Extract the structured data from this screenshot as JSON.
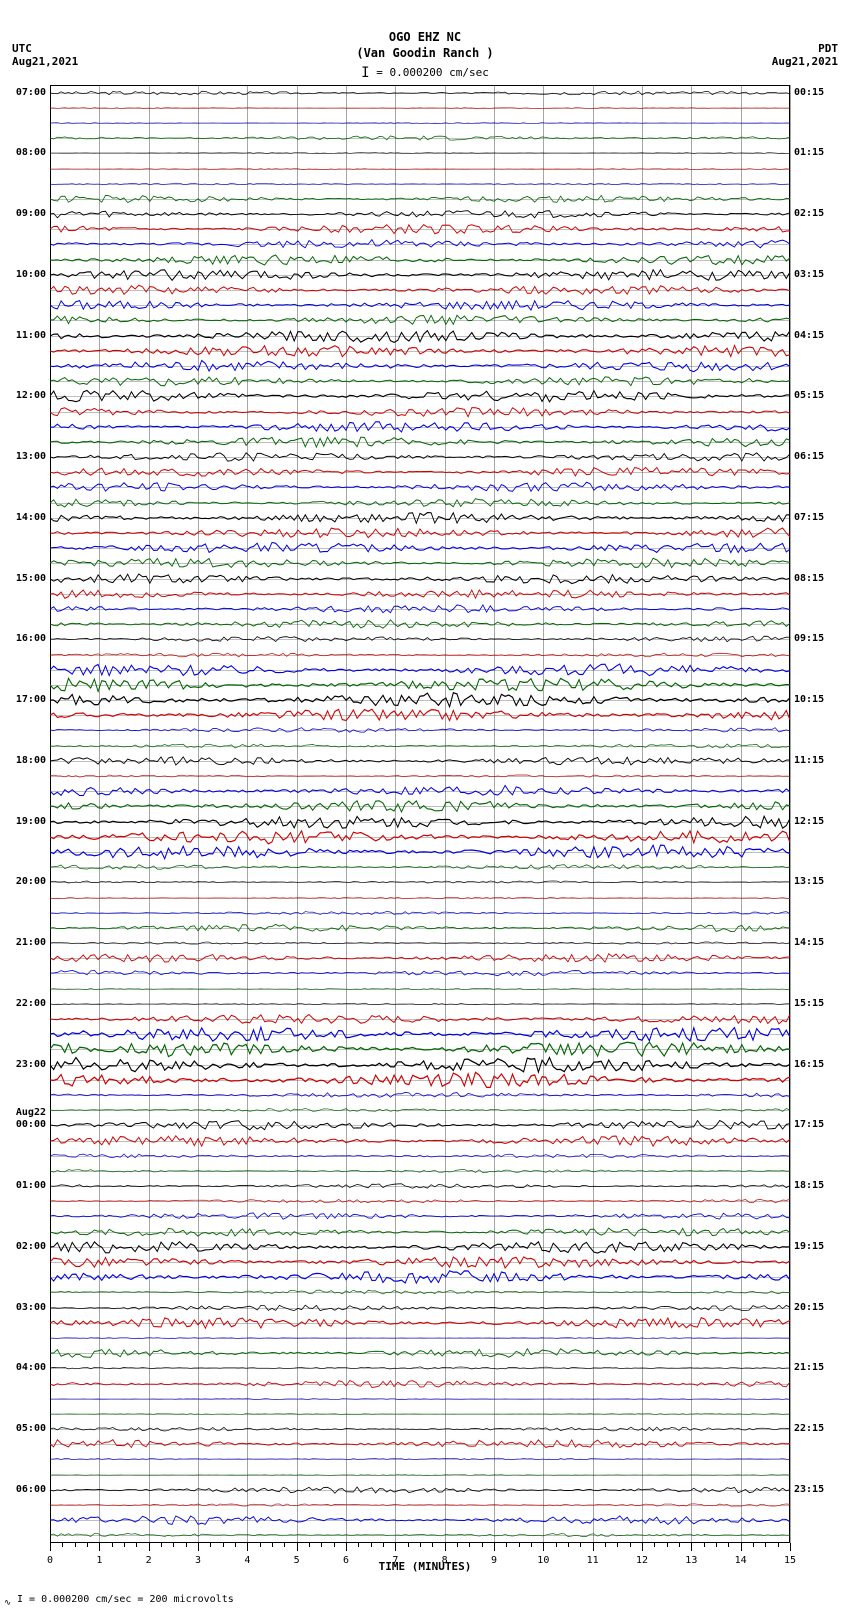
{
  "header": {
    "station": "OGO EHZ NC",
    "location": "(Van Goodin Ranch )",
    "scale_text": "= 0.000200 cm/sec"
  },
  "left_tz": "UTC",
  "left_date": "Aug21,2021",
  "right_tz": "PDT",
  "right_date": "Aug21,2021",
  "footer_text": "= 0.000200 cm/sec =    200 microvolts",
  "xaxis": {
    "label": "TIME (MINUTES)",
    "min": 0,
    "max": 15,
    "ticks": [
      0,
      1,
      2,
      3,
      4,
      5,
      6,
      7,
      8,
      9,
      10,
      11,
      12,
      13,
      14,
      15
    ]
  },
  "colors": {
    "black": "#000000",
    "red": "#cc0000",
    "blue": "#0000dd",
    "green": "#006600"
  },
  "plot": {
    "total_seg_rows": 96,
    "trace_colors_cycle": [
      "black",
      "red",
      "blue",
      "green"
    ],
    "left_labels": [
      {
        "seg": 0,
        "text": "07:00"
      },
      {
        "seg": 4,
        "text": "08:00"
      },
      {
        "seg": 8,
        "text": "09:00"
      },
      {
        "seg": 12,
        "text": "10:00"
      },
      {
        "seg": 16,
        "text": "11:00"
      },
      {
        "seg": 20,
        "text": "12:00"
      },
      {
        "seg": 24,
        "text": "13:00"
      },
      {
        "seg": 28,
        "text": "14:00"
      },
      {
        "seg": 32,
        "text": "15:00"
      },
      {
        "seg": 36,
        "text": "16:00"
      },
      {
        "seg": 40,
        "text": "17:00"
      },
      {
        "seg": 44,
        "text": "18:00"
      },
      {
        "seg": 48,
        "text": "19:00"
      },
      {
        "seg": 52,
        "text": "20:00"
      },
      {
        "seg": 56,
        "text": "21:00"
      },
      {
        "seg": 60,
        "text": "22:00"
      },
      {
        "seg": 64,
        "text": "23:00"
      },
      {
        "seg": 68,
        "text": "00:00",
        "day": "Aug22"
      },
      {
        "seg": 72,
        "text": "01:00"
      },
      {
        "seg": 76,
        "text": "02:00"
      },
      {
        "seg": 80,
        "text": "03:00"
      },
      {
        "seg": 84,
        "text": "04:00"
      },
      {
        "seg": 88,
        "text": "05:00"
      },
      {
        "seg": 92,
        "text": "06:00"
      }
    ],
    "right_labels": [
      {
        "seg": 0,
        "text": "00:15"
      },
      {
        "seg": 4,
        "text": "01:15"
      },
      {
        "seg": 8,
        "text": "02:15"
      },
      {
        "seg": 12,
        "text": "03:15"
      },
      {
        "seg": 16,
        "text": "04:15"
      },
      {
        "seg": 20,
        "text": "05:15"
      },
      {
        "seg": 24,
        "text": "06:15"
      },
      {
        "seg": 28,
        "text": "07:15"
      },
      {
        "seg": 32,
        "text": "08:15"
      },
      {
        "seg": 36,
        "text": "09:15"
      },
      {
        "seg": 40,
        "text": "10:15"
      },
      {
        "seg": 44,
        "text": "11:15"
      },
      {
        "seg": 48,
        "text": "12:15"
      },
      {
        "seg": 52,
        "text": "13:15"
      },
      {
        "seg": 56,
        "text": "14:15"
      },
      {
        "seg": 60,
        "text": "15:15"
      },
      {
        "seg": 64,
        "text": "16:15"
      },
      {
        "seg": 68,
        "text": "17:15"
      },
      {
        "seg": 72,
        "text": "18:15"
      },
      {
        "seg": 76,
        "text": "19:15"
      },
      {
        "seg": 80,
        "text": "20:15"
      },
      {
        "seg": 84,
        "text": "21:15"
      },
      {
        "seg": 88,
        "text": "22:15"
      },
      {
        "seg": 92,
        "text": "23:15"
      }
    ],
    "amplitudes": [
      0.25,
      0.05,
      0.05,
      0.3,
      0.05,
      0.05,
      0.1,
      0.45,
      0.5,
      0.6,
      0.55,
      0.65,
      0.7,
      0.6,
      0.65,
      0.6,
      0.8,
      0.75,
      0.7,
      0.6,
      0.75,
      0.6,
      0.7,
      0.65,
      0.55,
      0.6,
      0.6,
      0.55,
      0.7,
      0.65,
      0.7,
      0.6,
      0.65,
      0.6,
      0.55,
      0.55,
      0.35,
      0.25,
      0.75,
      0.85,
      0.9,
      0.8,
      0.3,
      0.25,
      0.55,
      0.15,
      0.7,
      0.75,
      0.8,
      0.85,
      0.85,
      0.3,
      0.15,
      0.1,
      0.2,
      0.45,
      0.15,
      0.55,
      0.35,
      0.1,
      0.1,
      0.65,
      0.9,
      0.95,
      0.95,
      0.95,
      0.35,
      0.2,
      0.6,
      0.65,
      0.25,
      0.2,
      0.3,
      0.25,
      0.4,
      0.55,
      0.75,
      0.75,
      0.8,
      0.25,
      0.35,
      0.7,
      0.05,
      0.55,
      0.15,
      0.45,
      0.05,
      0.05,
      0.25,
      0.55,
      0.1,
      0.05,
      0.4,
      0.15,
      0.55,
      0.2
    ]
  }
}
